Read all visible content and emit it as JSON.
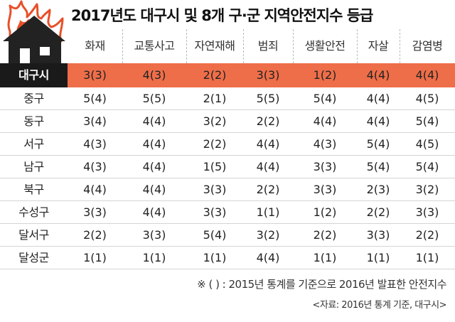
{
  "title": "2017년도 대구시 및 8개 구·군 지역안전지수 등급",
  "columns": [
    "화재",
    "교통사고",
    "자연재해",
    "범죄",
    "생활안전",
    "자살",
    "감염병"
  ],
  "highlight": {
    "label": "대구시",
    "values": [
      "3(3)",
      "4(3)",
      "2(2)",
      "3(3)",
      "1(2)",
      "4(4)",
      "4(4)"
    ]
  },
  "rows": [
    {
      "label": "중구",
      "values": [
        "5(4)",
        "5(5)",
        "2(1)",
        "5(5)",
        "5(4)",
        "4(4)",
        "4(5)"
      ]
    },
    {
      "label": "동구",
      "values": [
        "3(4)",
        "4(4)",
        "3(2)",
        "2(2)",
        "4(4)",
        "4(4)",
        "5(4)"
      ]
    },
    {
      "label": "서구",
      "values": [
        "4(3)",
        "4(4)",
        "2(2)",
        "4(4)",
        "4(3)",
        "5(4)",
        "4(5)"
      ]
    },
    {
      "label": "남구",
      "values": [
        "4(3)",
        "4(4)",
        "1(5)",
        "4(4)",
        "3(3)",
        "5(4)",
        "5(4)"
      ]
    },
    {
      "label": "북구",
      "values": [
        "4(4)",
        "4(4)",
        "3(3)",
        "2(2)",
        "3(3)",
        "2(3)",
        "3(2)"
      ]
    },
    {
      "label": "수성구",
      "values": [
        "3(3)",
        "4(4)",
        "3(3)",
        "1(1)",
        "1(2)",
        "2(2)",
        "3(3)"
      ]
    },
    {
      "label": "달서구",
      "values": [
        "2(2)",
        "3(3)",
        "5(4)",
        "3(2)",
        "2(2)",
        "3(3)",
        "2(2)"
      ]
    },
    {
      "label": "달성군",
      "values": [
        "1(1)",
        "1(1)",
        "1(1)",
        "4(4)",
        "1(1)",
        "1(1)",
        "1(1)"
      ]
    }
  ],
  "footnote": "※ ( ) : 2015년 통계를 기준으로 2016년 발표한 안전지수",
  "source": "<자료: 2016년 통계 기준, 대구시>",
  "colors": {
    "accent": "#ee6e49",
    "dark": "#1a1a1a",
    "flame": "#e8502a"
  },
  "icons": {
    "logo": "burning-house-icon"
  }
}
